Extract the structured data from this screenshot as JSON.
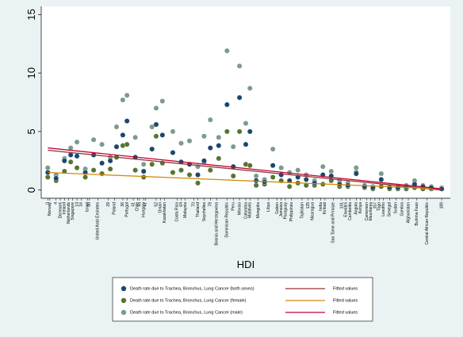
{
  "chart_data": {
    "type": "scatter",
    "x_label": "HDI",
    "x": [
      0,
      4,
      8,
      11,
      14,
      18,
      22,
      26,
      30,
      33,
      36,
      38,
      42,
      46,
      50,
      52,
      55,
      60,
      64,
      68,
      72,
      75,
      78,
      82,
      86,
      89,
      92,
      95,
      97,
      100,
      104,
      108,
      112,
      116,
      120,
      124,
      128,
      132,
      136,
      140,
      144,
      148,
      152,
      156,
      160,
      164,
      168,
      172,
      176,
      180,
      184,
      189
    ],
    "series": [
      {
        "name": "Death rate due to Trachea, Bronchus, Lung Cancer (both sexes)",
        "color": "#1a476f",
        "values": [
          1.5,
          1.0,
          2.5,
          3.0,
          2.9,
          1.5,
          3.0,
          2.3,
          2.5,
          3.7,
          4.7,
          5.9,
          2.8,
          1.6,
          3.5,
          5.6,
          4.7,
          3.2,
          2.4,
          2.2,
          1.3,
          2.5,
          3.6,
          3.8,
          7.3,
          2.0,
          7.9,
          3.9,
          5.0,
          0.8,
          0.7,
          2.1,
          1.3,
          0.8,
          1.1,
          0.9,
          0.6,
          1.3,
          1.2,
          0.5,
          0.4,
          1.4,
          0.3,
          0.2,
          0.9,
          0.2,
          0.2,
          0.3,
          0.5,
          0.3,
          0.2,
          0.1
        ]
      },
      {
        "name": "Death rate due to Trachea, Bronchus, Lung Cancer (female)",
        "color": "#55752f",
        "values": [
          1.1,
          0.8,
          1.6,
          2.4,
          1.9,
          1.1,
          1.7,
          1.4,
          1.8,
          2.8,
          3.8,
          3.9,
          1.7,
          1.1,
          2.2,
          4.6,
          2.3,
          1.5,
          1.7,
          1.3,
          0.6,
          2.4,
          1.7,
          2.7,
          5.0,
          1.2,
          5.0,
          2.2,
          2.1,
          0.4,
          0.5,
          1.1,
          0.8,
          0.3,
          0.6,
          0.4,
          0.4,
          0.5,
          0.8,
          0.3,
          0.3,
          1.5,
          0.2,
          0.1,
          0.3,
          0.1,
          0.1,
          0.1,
          0.2,
          0.1,
          0.1,
          0.1
        ]
      },
      {
        "name": "Death rate due to Trachea, Bronchus, Lung Cancer (male)",
        "color": "#7c9b8c",
        "values": [
          1.9,
          1.3,
          2.7,
          3.6,
          4.1,
          1.8,
          4.3,
          3.9,
          2.8,
          5.4,
          7.7,
          8.1,
          4.5,
          2.2,
          5.4,
          7.0,
          7.6,
          5.0,
          4.0,
          4.2,
          2.0,
          4.6,
          6.0,
          4.5,
          11.9,
          3.7,
          10.6,
          5.7,
          8.7,
          1.2,
          0.9,
          3.5,
          1.9,
          1.5,
          1.7,
          1.3,
          0.8,
          2.0,
          1.6,
          0.8,
          0.6,
          1.9,
          0.4,
          0.3,
          1.4,
          0.3,
          0.3,
          0.4,
          0.8,
          0.4,
          0.3,
          0.2
        ]
      }
    ],
    "fit_x": [
      0,
      189
    ],
    "fits": [
      {
        "name": "Fitted values",
        "color": "#90353b",
        "values": [
          3.4,
          0.0
        ]
      },
      {
        "name": "Fitted values",
        "color": "#d08a12",
        "values": [
          1.5,
          0.1
        ]
      },
      {
        "name": "Fitted values",
        "color": "#c10534",
        "values": [
          3.6,
          0.1
        ]
      }
    ],
    "xlim": [
      -2,
      192
    ],
    "ylim": [
      -0.7,
      15.7
    ],
    "yticks": [
      0,
      5,
      10,
      15
    ],
    "xticks": [
      0,
      {
        "value": 1,
        "label": "Norway"
      },
      4,
      {
        "value": 6,
        "label": "Denmark"
      },
      {
        "value": 8,
        "label": "Ireland"
      },
      {
        "value": 10,
        "label": "Netherlands"
      },
      {
        "value": 12,
        "label": "Singapore"
      },
      14,
      16,
      {
        "value": 19,
        "label": "Israel"
      },
      20,
      {
        "value": 24,
        "label": "United Arab Emirates"
      },
      29,
      {
        "value": 32,
        "label": "Poland"
      },
      36,
      {
        "value": 38,
        "label": "Portugal"
      },
      41,
      {
        "value": 43,
        "label": "Chile"
      },
      44,
      {
        "value": 46,
        "label": "Hungary"
      },
      47,
      52,
      {
        "value": 54,
        "label": "Oman"
      },
      {
        "value": 56,
        "label": "Kazakhstan"
      },
      {
        "value": 62,
        "label": "Costa Rica"
      },
      64,
      {
        "value": 66,
        "label": "Malaysia"
      },
      70,
      {
        "value": 72,
        "label": "Thailand"
      },
      {
        "value": 75,
        "label": "Seychelles"
      },
      78,
      {
        "value": 81,
        "label": "Bosnia and Herzegovina"
      },
      {
        "value": 86,
        "label": "Dominican Republic"
      },
      {
        "value": 89,
        "label": "Peru"
      },
      {
        "value": 92,
        "label": "Mexico"
      },
      {
        "value": 95,
        "label": "Colombia"
      },
      {
        "value": 97,
        "label": "Maldives"
      },
      {
        "value": 101,
        "label": "Mongolia"
      },
      {
        "value": 106,
        "label": "Libya"
      },
      {
        "value": 110,
        "label": "Gabon"
      },
      {
        "value": 112,
        "label": "Jamaica"
      },
      {
        "value": 114,
        "label": "Paraguay"
      },
      {
        "value": 117,
        "label": "Philippines"
      },
      {
        "value": 122,
        "label": "Tajikistan"
      },
      125,
      {
        "value": 127,
        "label": "Nicaragua"
      },
      {
        "value": 131,
        "label": "India"
      },
      {
        "value": 133,
        "label": "Kiribati"
      },
      {
        "value": 137,
        "label": "Sao Tome and Principe"
      },
      141,
      {
        "value": 143,
        "label": "Eswatini"
      },
      {
        "value": 145,
        "label": "Cambodia"
      },
      {
        "value": 148,
        "label": "Angola"
      },
      {
        "value": 150,
        "label": "Kenya"
      },
      {
        "value": 153,
        "label": "Cameroon"
      },
      {
        "value": 155,
        "label": "Mauritania"
      },
      157,
      {
        "value": 159,
        "label": "Togo"
      },
      {
        "value": 161,
        "label": "Lesotho"
      },
      {
        "value": 164,
        "label": "Senegal"
      },
      {
        "value": 167,
        "label": "Sudan"
      },
      {
        "value": 170,
        "label": "Gambia"
      },
      {
        "value": 173,
        "label": "Afghanistan"
      },
      {
        "value": 177,
        "label": "Burkina Faso"
      },
      {
        "value": 182,
        "label": "Central African Republic"
      },
      189
    ]
  }
}
